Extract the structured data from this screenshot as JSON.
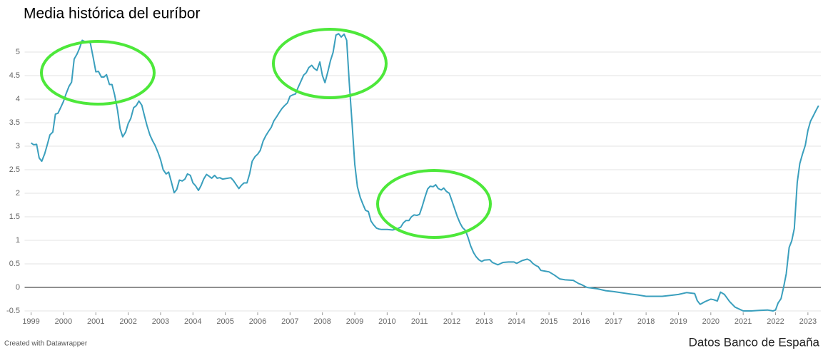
{
  "chart_data": {
    "type": "line",
    "title": "Media histórica del euríbor",
    "credit": "Created with Datawrapper",
    "source": "Datos Banco de España",
    "color": "#3a9fbd",
    "zero_line_color": "#222222",
    "grid": true,
    "xlim": [
      1998.8,
      2023.4
    ],
    "xticks": [
      1999,
      2000,
      2001,
      2002,
      2003,
      2004,
      2005,
      2006,
      2007,
      2008,
      2009,
      2010,
      2011,
      2012,
      2013,
      2014,
      2015,
      2016,
      2017,
      2018,
      2019,
      2020,
      2021,
      2022,
      2023
    ],
    "ylim": [
      -0.5,
      5.5
    ],
    "yticks": [
      -0.5,
      0,
      0.5,
      1,
      1.5,
      2,
      2.5,
      3,
      3.5,
      4,
      4.5,
      5
    ],
    "x": [
      1999.0,
      1999.08,
      1999.17,
      1999.25,
      1999.33,
      1999.42,
      1999.5,
      1999.58,
      1999.67,
      1999.75,
      1999.83,
      1999.92,
      2000.0,
      2000.08,
      2000.17,
      2000.25,
      2000.33,
      2000.42,
      2000.5,
      2000.58,
      2000.67,
      2000.75,
      2000.83,
      2000.92,
      2001.0,
      2001.08,
      2001.17,
      2001.25,
      2001.33,
      2001.42,
      2001.5,
      2001.58,
      2001.67,
      2001.75,
      2001.83,
      2001.92,
      2002.0,
      2002.08,
      2002.17,
      2002.25,
      2002.33,
      2002.42,
      2002.5,
      2002.58,
      2002.67,
      2002.75,
      2002.83,
      2002.92,
      2003.0,
      2003.08,
      2003.17,
      2003.25,
      2003.33,
      2003.42,
      2003.5,
      2003.58,
      2003.67,
      2003.75,
      2003.83,
      2003.92,
      2004.0,
      2004.08,
      2004.17,
      2004.25,
      2004.33,
      2004.42,
      2004.5,
      2004.58,
      2004.67,
      2004.75,
      2004.83,
      2004.92,
      2005.0,
      2005.17,
      2005.25,
      2005.33,
      2005.42,
      2005.5,
      2005.58,
      2005.67,
      2005.75,
      2005.83,
      2005.92,
      2006.0,
      2006.08,
      2006.17,
      2006.25,
      2006.33,
      2006.42,
      2006.5,
      2006.58,
      2006.67,
      2006.75,
      2006.83,
      2006.92,
      2007.0,
      2007.08,
      2007.17,
      2007.25,
      2007.33,
      2007.42,
      2007.5,
      2007.58,
      2007.67,
      2007.75,
      2007.83,
      2007.92,
      2008.0,
      2008.08,
      2008.17,
      2008.25,
      2008.33,
      2008.42,
      2008.5,
      2008.58,
      2008.67,
      2008.75,
      2008.83,
      2008.92,
      2009.0,
      2009.08,
      2009.17,
      2009.25,
      2009.33,
      2009.42,
      2009.5,
      2009.58,
      2009.67,
      2009.75,
      2009.83,
      2010.0,
      2010.17,
      2010.33,
      2010.42,
      2010.5,
      2010.58,
      2010.67,
      2010.75,
      2010.83,
      2010.92,
      2011.0,
      2011.08,
      2011.17,
      2011.25,
      2011.33,
      2011.42,
      2011.5,
      2011.58,
      2011.67,
      2011.75,
      2011.83,
      2011.92,
      2012.0,
      2012.08,
      2012.17,
      2012.25,
      2012.33,
      2012.42,
      2012.5,
      2012.58,
      2012.67,
      2012.75,
      2012.83,
      2012.92,
      2013.0,
      2013.17,
      2013.25,
      2013.42,
      2013.58,
      2013.75,
      2013.92,
      2014.0,
      2014.17,
      2014.33,
      2014.42,
      2014.5,
      2014.58,
      2014.67,
      2014.75,
      2015.0,
      2015.17,
      2015.33,
      2015.5,
      2015.75,
      2015.92,
      2016.0,
      2016.17,
      2016.5,
      2016.75,
      2017.0,
      2017.5,
      2017.75,
      2018.0,
      2018.5,
      2018.75,
      2019.0,
      2019.25,
      2019.5,
      2019.58,
      2019.67,
      2019.83,
      2020.0,
      2020.08,
      2020.2,
      2020.3,
      2020.42,
      2020.58,
      2020.75,
      2021.0,
      2021.25,
      2021.5,
      2021.75,
      2021.92,
      2022.0,
      2022.08,
      2022.17,
      2022.25,
      2022.33,
      2022.42,
      2022.5,
      2022.58,
      2022.67,
      2022.75,
      2022.83,
      2022.92,
      2023.0,
      2023.08,
      2023.17,
      2023.25,
      2023.33
    ],
    "values": [
      3.07,
      3.03,
      3.04,
      2.75,
      2.68,
      2.84,
      3.03,
      3.24,
      3.3,
      3.68,
      3.7,
      3.83,
      3.95,
      4.11,
      4.27,
      4.36,
      4.85,
      4.96,
      5.09,
      5.25,
      5.22,
      5.22,
      5.19,
      4.88,
      4.58,
      4.59,
      4.47,
      4.47,
      4.52,
      4.31,
      4.31,
      4.09,
      3.77,
      3.37,
      3.2,
      3.3,
      3.48,
      3.59,
      3.82,
      3.86,
      3.96,
      3.87,
      3.65,
      3.44,
      3.24,
      3.12,
      3.02,
      2.87,
      2.71,
      2.5,
      2.41,
      2.45,
      2.25,
      2.01,
      2.08,
      2.28,
      2.26,
      2.3,
      2.41,
      2.38,
      2.22,
      2.16,
      2.06,
      2.16,
      2.3,
      2.4,
      2.36,
      2.32,
      2.38,
      2.32,
      2.33,
      2.3,
      2.31,
      2.33,
      2.27,
      2.19,
      2.1,
      2.17,
      2.22,
      2.22,
      2.41,
      2.68,
      2.78,
      2.83,
      2.91,
      3.11,
      3.22,
      3.31,
      3.4,
      3.54,
      3.62,
      3.72,
      3.8,
      3.86,
      3.92,
      4.06,
      4.09,
      4.11,
      4.25,
      4.37,
      4.51,
      4.56,
      4.67,
      4.72,
      4.65,
      4.61,
      4.79,
      4.5,
      4.35,
      4.59,
      4.82,
      4.99,
      5.36,
      5.39,
      5.32,
      5.38,
      5.25,
      4.35,
      3.45,
      2.62,
      2.14,
      1.91,
      1.77,
      1.64,
      1.61,
      1.41,
      1.33,
      1.26,
      1.24,
      1.23,
      1.23,
      1.22,
      1.25,
      1.28,
      1.37,
      1.42,
      1.42,
      1.5,
      1.54,
      1.53,
      1.55,
      1.71,
      1.92,
      2.09,
      2.15,
      2.14,
      2.18,
      2.1,
      2.07,
      2.11,
      2.04,
      2.0,
      1.84,
      1.68,
      1.5,
      1.37,
      1.27,
      1.21,
      1.06,
      0.88,
      0.74,
      0.65,
      0.59,
      0.55,
      0.58,
      0.59,
      0.53,
      0.48,
      0.53,
      0.54,
      0.54,
      0.51,
      0.57,
      0.6,
      0.57,
      0.51,
      0.47,
      0.44,
      0.36,
      0.33,
      0.26,
      0.18,
      0.16,
      0.15,
      0.08,
      0.06,
      0.0,
      -0.03,
      -0.07,
      -0.09,
      -0.14,
      -0.16,
      -0.19,
      -0.19,
      -0.17,
      -0.15,
      -0.11,
      -0.13,
      -0.28,
      -0.36,
      -0.3,
      -0.25,
      -0.26,
      -0.29,
      -0.1,
      -0.15,
      -0.3,
      -0.42,
      -0.5,
      -0.5,
      -0.49,
      -0.48,
      -0.5,
      -0.48,
      -0.33,
      -0.24,
      0.01,
      0.29,
      0.85,
      0.99,
      1.25,
      2.23,
      2.63,
      2.83,
      3.02,
      3.34,
      3.53,
      3.65,
      3.76,
      3.86
    ]
  }
}
